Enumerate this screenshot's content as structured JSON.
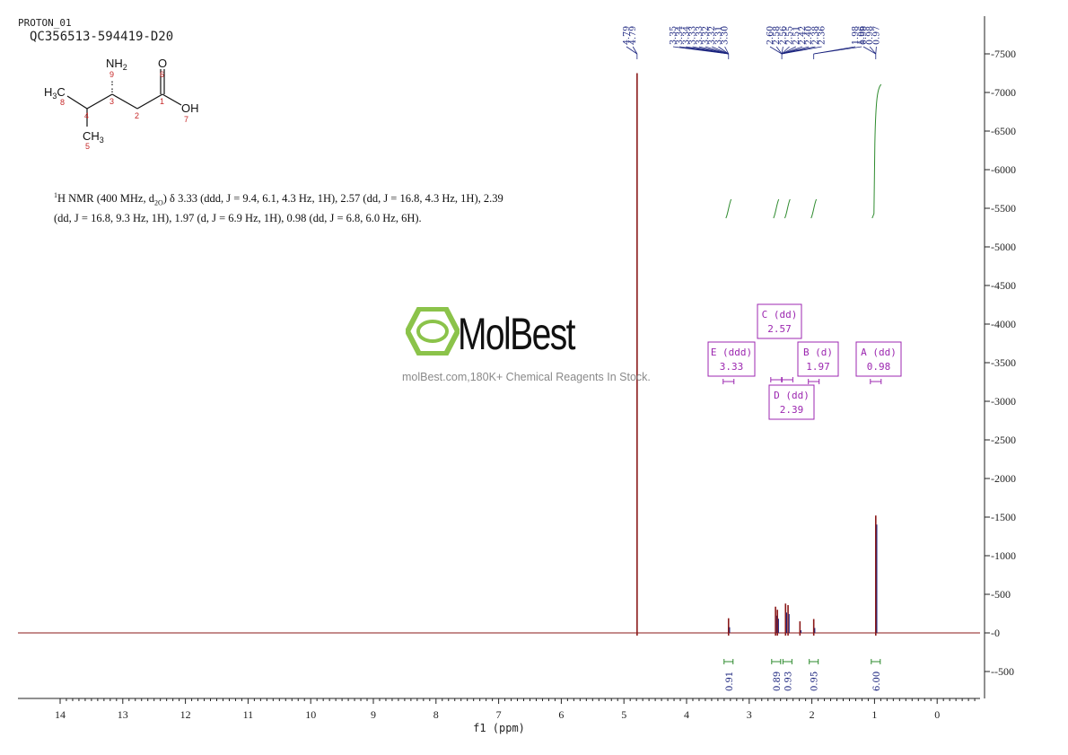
{
  "header": {
    "experiment": "PROTON_01",
    "sample_id": "QC356513-594419-D20"
  },
  "structure": {
    "nh2": "NH",
    "nh2_sub": "2",
    "oxygen": "O",
    "oh": "OH",
    "ch3_left": "H",
    "ch3_left_sub": "3",
    "ch3_left_c": "C",
    "ch3_bottom": "CH",
    "ch3_bottom_sub": "3",
    "atom_numbers": [
      "9",
      "6",
      "3",
      "1",
      "8",
      "4",
      "2",
      "7",
      "5"
    ]
  },
  "nmr_text": {
    "line1_pre": "H NMR (400 MHz, d",
    "sup": "1",
    "sub": "2O",
    "line1_post": ") δ 3.33 (ddd, J = 9.4, 6.1, 4.3 Hz, 1H), 2.57 (dd, J = 16.8, 4.3 Hz, 1H), 2.39",
    "line2": "(dd, J = 16.8, 9.3 Hz, 1H), 1.97 (d, J = 6.9 Hz, 1H), 0.98 (dd, J = 6.8, 6.0 Hz, 6H)."
  },
  "watermark": {
    "brand": "MolBest",
    "tagline": "molBest.com,180K+ Chemical Reagents In Stock."
  },
  "chart_data": {
    "type": "line",
    "xlabel": "f1 (ppm)",
    "x_reversed": true,
    "xlim": [
      14.7,
      -0.7
    ],
    "ylim": [
      -850,
      7900
    ],
    "x_ticks": [
      14,
      13,
      12,
      11,
      10,
      9,
      8,
      7,
      6,
      5,
      4,
      3,
      2,
      1,
      0
    ],
    "y_ticks": [
      7500,
      7000,
      6500,
      6000,
      5500,
      5000,
      4500,
      4000,
      3500,
      3000,
      2500,
      2000,
      1500,
      1000,
      500,
      0,
      -500
    ],
    "peaks": [
      {
        "ppm": 4.79,
        "height": 7250
      },
      {
        "ppm": 3.33,
        "height": 190
      },
      {
        "ppm": 2.58,
        "height": 340
      },
      {
        "ppm": 2.55,
        "height": 300
      },
      {
        "ppm": 2.42,
        "height": 380
      },
      {
        "ppm": 2.38,
        "height": 360
      },
      {
        "ppm": 2.19,
        "height": 150
      },
      {
        "ppm": 1.97,
        "height": 180
      },
      {
        "ppm": 0.98,
        "height": 1520
      }
    ],
    "peak_labels": [
      "4.79",
      "4.79",
      "3.35",
      "3.34",
      "3.34",
      "3.33",
      "3.33",
      "3.32",
      "3.32",
      "3.31",
      "3.30",
      "2.60",
      "2.58",
      "2.56",
      "2.55",
      "2.51",
      "2.42",
      "2.40",
      "2.38",
      "2.36",
      "1.98",
      "1.96",
      "0.98",
      "0.98",
      "0.97"
    ],
    "peak_label_groups": [
      {
        "ppm": 4.79,
        "count": 2
      },
      {
        "ppm": 3.33,
        "count": 9
      },
      {
        "ppm": 2.48,
        "count": 9
      },
      {
        "ppm": 1.97,
        "count": 2
      },
      {
        "ppm": 0.98,
        "count": 3
      }
    ],
    "multiplets": [
      {
        "letter": "E",
        "type": "ddd",
        "shift": "3.33",
        "ppm": 3.33
      },
      {
        "letter": "C",
        "type": "dd",
        "shift": "2.57",
        "ppm": 2.57
      },
      {
        "letter": "D",
        "type": "dd",
        "shift": "2.39",
        "ppm": 2.39
      },
      {
        "letter": "B",
        "type": "d",
        "shift": "1.97",
        "ppm": 1.97
      },
      {
        "letter": "A",
        "type": "dd",
        "shift": "0.98",
        "ppm": 0.98
      }
    ],
    "integrals": [
      {
        "ppm": 3.33,
        "value": "0.91"
      },
      {
        "ppm": 2.57,
        "value": "0.89"
      },
      {
        "ppm": 2.39,
        "value": "0.93"
      },
      {
        "ppm": 1.97,
        "value": "0.95"
      },
      {
        "ppm": 0.98,
        "value": "6.00"
      }
    ],
    "colors": {
      "spectrum": "#8b1a1a",
      "peak_labels": "#1a237e",
      "multiplet": "#9c27b0",
      "integral": "#2e8b2e"
    }
  }
}
